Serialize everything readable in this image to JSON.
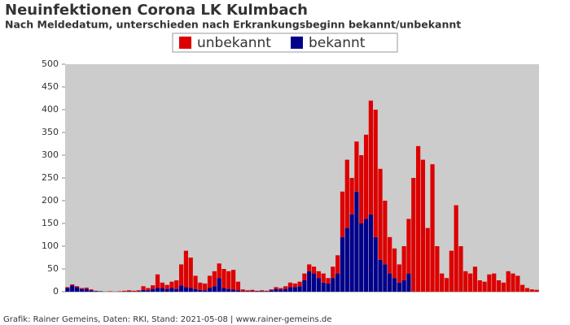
{
  "chart_data": {
    "type": "stacked_bar",
    "title": "Neuinfektionen Corona LK Kulmbach",
    "subtitle": "Nach Meldedatum, unterschieden nach Erkrankungsbeginn bekannt/unbekannt",
    "footer": "Grafik: Rainer Gemeins, Daten: RKI, Stand: 2021-05-08 | www.rainer-gemeins.de",
    "categories": [
      null,
      null,
      null,
      null,
      null,
      null,
      null,
      null,
      null,
      null,
      null,
      null,
      null,
      null,
      null,
      null,
      null,
      null,
      null,
      null,
      null,
      null,
      null,
      null,
      null,
      null,
      null,
      null,
      null,
      null,
      null,
      null,
      null,
      null,
      null,
      null,
      null,
      null,
      null,
      null,
      null,
      null,
      null,
      null,
      null,
      null,
      null,
      null,
      null,
      null,
      null,
      null,
      null,
      null,
      null,
      null,
      null,
      null,
      null,
      null,
      null,
      null,
      null,
      null,
      null,
      null,
      null,
      null,
      null,
      null,
      null,
      null,
      null,
      null,
      null,
      null,
      null,
      null,
      null,
      null,
      null,
      null,
      null,
      null,
      null,
      null,
      null,
      null,
      null,
      null,
      null,
      null,
      null,
      null,
      null,
      null,
      null,
      null,
      null,
      null
    ],
    "series": [
      {
        "name": "unbekannt",
        "color": "#dd0000",
        "values": [
          2,
          2,
          2,
          2,
          3,
          2,
          1,
          0,
          0,
          1,
          0,
          1,
          2,
          2,
          2,
          2,
          8,
          5,
          8,
          30,
          12,
          9,
          14,
          19,
          46,
          80,
          67,
          29,
          16,
          15,
          27,
          33,
          32,
          42,
          39,
          43,
          19,
          4,
          2,
          3,
          1,
          2,
          1,
          2,
          4,
          3,
          6,
          10,
          8,
          10,
          15,
          15,
          15,
          15,
          20,
          12,
          25,
          40,
          100,
          150,
          80,
          110,
          150,
          185,
          250,
          280,
          200,
          140,
          80,
          65,
          40,
          75,
          120,
          250,
          320,
          290,
          140,
          280,
          100,
          40,
          30,
          90,
          190,
          100,
          45,
          40,
          55,
          25,
          22,
          38,
          40,
          25,
          20,
          45,
          40,
          35,
          15,
          8,
          5,
          4
        ]
      },
      {
        "name": "bekannt",
        "color": "#00008b",
        "values": [
          8,
          14,
          10,
          6,
          6,
          3,
          1,
          1,
          0,
          0,
          0,
          0,
          0,
          1,
          0,
          1,
          4,
          3,
          6,
          8,
          8,
          6,
          8,
          6,
          14,
          10,
          8,
          6,
          4,
          3,
          8,
          12,
          30,
          8,
          6,
          5,
          3,
          1,
          1,
          1,
          1,
          1,
          1,
          3,
          6,
          5,
          6,
          10,
          10,
          12,
          25,
          45,
          40,
          30,
          20,
          18,
          30,
          40,
          120,
          140,
          170,
          220,
          150,
          160,
          170,
          120,
          70,
          60,
          40,
          30,
          20,
          25,
          40,
          0,
          0,
          0,
          0,
          0,
          0,
          0,
          0,
          0,
          0,
          0,
          0,
          0,
          0,
          0,
          0,
          0,
          0,
          0,
          0,
          0,
          0,
          0,
          0,
          0,
          0,
          0
        ]
      }
    ],
    "ylim": [
      0,
      500
    ],
    "yticks": [
      0,
      50,
      100,
      150,
      200,
      250,
      300,
      350,
      400,
      450,
      500
    ],
    "legend": "top"
  }
}
